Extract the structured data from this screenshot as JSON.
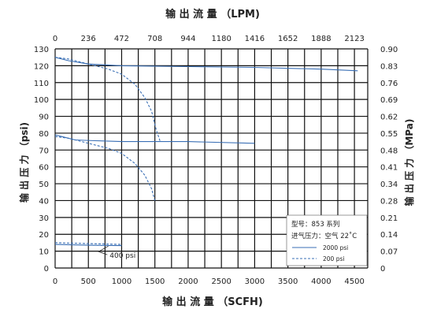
{
  "colors": {
    "grid": "#111111",
    "curve": "#3a6fb5",
    "background": "#ffffff"
  },
  "chart_data": {
    "type": "line",
    "title_top": "输 出 流 量 （LPM)",
    "xlabel": "输 出 流 量 （SCFH)",
    "ylabel_left": "输 出 压 力 （psi)",
    "ylabel_right": "输 出 压 力 （MPa)",
    "x_range": [
      0,
      4700
    ],
    "y_range": [
      0,
      130
    ],
    "x_ticks": [
      0,
      500,
      1000,
      1500,
      2000,
      2500,
      3000,
      3500,
      4000,
      4500
    ],
    "y_ticks": [
      0,
      10,
      20,
      30,
      40,
      50,
      60,
      70,
      80,
      90,
      100,
      110,
      120,
      130
    ],
    "top_ticks": [
      {
        "x": 0,
        "label": "0"
      },
      {
        "x": 500,
        "label": "236"
      },
      {
        "x": 1000,
        "label": "472"
      },
      {
        "x": 1500,
        "label": "708"
      },
      {
        "x": 2000,
        "label": "944"
      },
      {
        "x": 2500,
        "label": "1180"
      },
      {
        "x": 3000,
        "label": "1416"
      },
      {
        "x": 3500,
        "label": "1652"
      },
      {
        "x": 4000,
        "label": "1888"
      },
      {
        "x": 4500,
        "label": "2123"
      }
    ],
    "right_ticks": [
      {
        "y": 0,
        "label": "0"
      },
      {
        "y": 10,
        "label": "0.07"
      },
      {
        "y": 20,
        "label": "0.14"
      },
      {
        "y": 30,
        "label": "0.21"
      },
      {
        "y": 40,
        "label": "0.28"
      },
      {
        "y": 50,
        "label": "0.34"
      },
      {
        "y": 60,
        "label": "0.41"
      },
      {
        "y": 70,
        "label": "0.48"
      },
      {
        "y": 80,
        "label": "0.55"
      },
      {
        "y": 90,
        "label": "0.62"
      },
      {
        "y": 100,
        "label": "0.69"
      },
      {
        "y": 110,
        "label": "0.76"
      },
      {
        "y": 120,
        "label": "0.83"
      },
      {
        "y": 130,
        "label": "0.90"
      }
    ],
    "grid": true,
    "legend": {
      "placement": "bottom-right",
      "lines": [
        "型号：853 系列",
        "进气压力：空气 22˚C"
      ],
      "items": [
        {
          "label": "2000 psi",
          "style": "solid"
        },
        {
          "label": "200 psi",
          "style": "dashed"
        }
      ]
    },
    "annotation": {
      "text": "400 psi",
      "x": 820,
      "y": 6,
      "arrow_to": [
        800,
        13
      ]
    },
    "series": [
      {
        "style": "solid",
        "points": [
          [
            0,
            125
          ],
          [
            200,
            123
          ],
          [
            500,
            121
          ],
          [
            1000,
            120
          ],
          [
            2000,
            119.5
          ],
          [
            3000,
            119
          ],
          [
            4000,
            118
          ],
          [
            4550,
            117
          ]
        ]
      },
      {
        "style": "dashed",
        "points": [
          [
            0,
            125
          ],
          [
            200,
            124
          ],
          [
            500,
            121
          ],
          [
            800,
            118
          ],
          [
            1000,
            115
          ],
          [
            1200,
            109
          ],
          [
            1350,
            101
          ],
          [
            1450,
            93
          ],
          [
            1520,
            82
          ],
          [
            1580,
            75
          ]
        ]
      },
      {
        "style": "solid",
        "points": [
          [
            0,
            79
          ],
          [
            100,
            78
          ],
          [
            300,
            76
          ],
          [
            600,
            75.5
          ],
          [
            1000,
            75
          ],
          [
            2000,
            75
          ],
          [
            3000,
            74
          ]
        ]
      },
      {
        "style": "dashed",
        "points": [
          [
            0,
            78
          ],
          [
            200,
            77
          ],
          [
            500,
            74
          ],
          [
            800,
            71
          ],
          [
            1000,
            68
          ],
          [
            1200,
            62
          ],
          [
            1350,
            55
          ],
          [
            1450,
            47
          ],
          [
            1500,
            40
          ]
        ]
      },
      {
        "style": "solid",
        "points": [
          [
            0,
            14
          ],
          [
            500,
            13.5
          ],
          [
            1000,
            13.3
          ]
        ]
      },
      {
        "style": "dashed",
        "points": [
          [
            0,
            15
          ],
          [
            500,
            14.5
          ],
          [
            1000,
            14
          ]
        ]
      }
    ]
  }
}
